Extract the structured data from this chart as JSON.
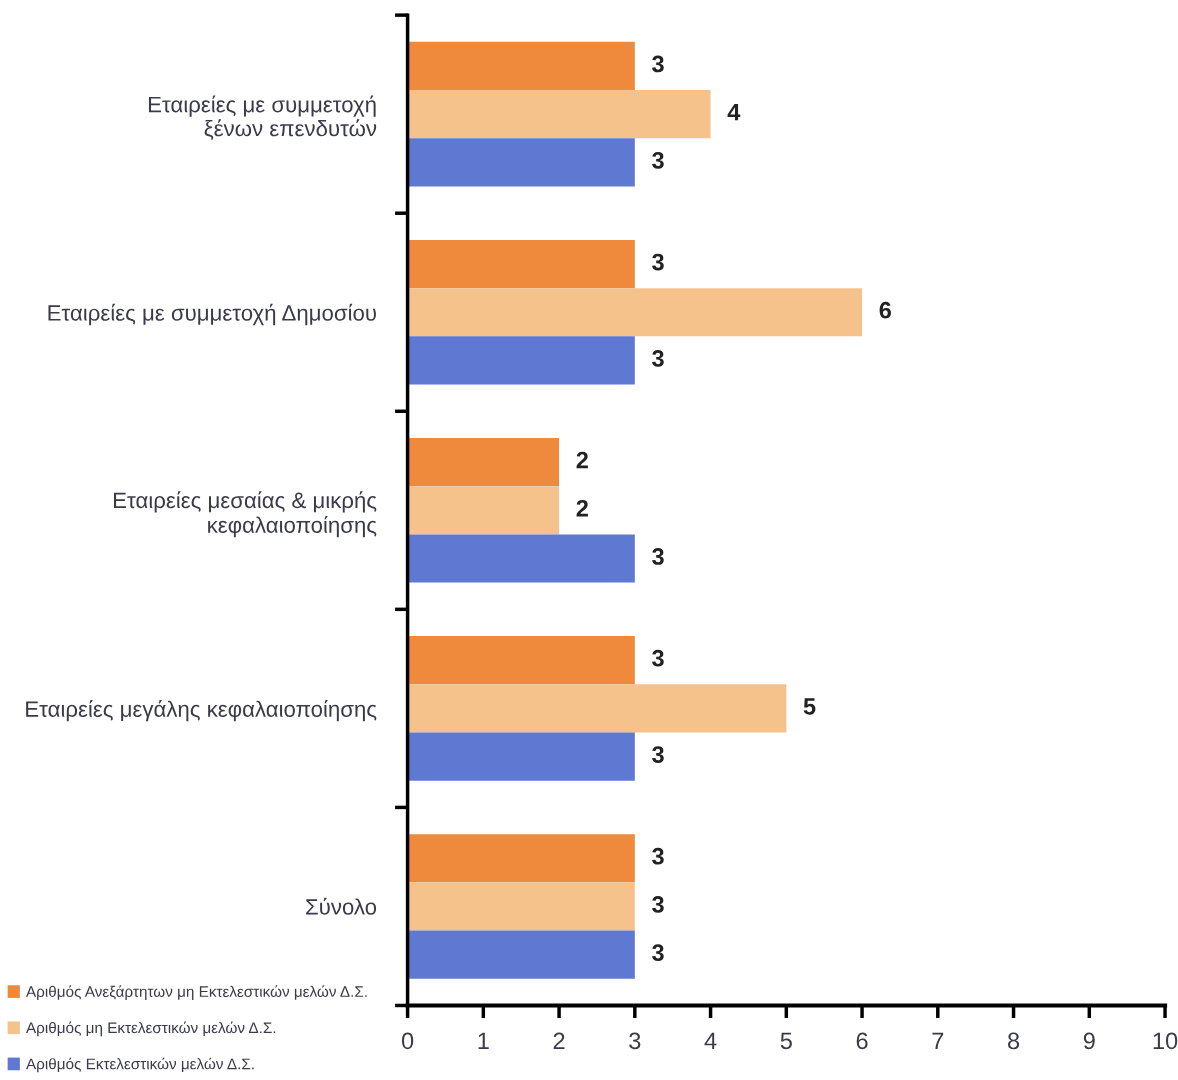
{
  "chart_data": {
    "type": "bar",
    "orientation": "horizontal",
    "categories": [
      "Εταιρείες με συμμετοχή\nξένων επενδυτών",
      "Εταιρείες με συμμετοχή Δημοσίου",
      "Εταιρείες μεσαίας & μικρής\nκεφαλαιοποίησης",
      "Εταιρείες μεγάλης κεφαλαιοποίησης",
      "Σύνολο"
    ],
    "series": [
      {
        "name": "Αριθμός Ανεξάρτητων μη Εκτελεστικών μελών Δ.Σ.",
        "color": "#ef8a3c",
        "values": [
          3,
          3,
          2,
          3,
          3
        ]
      },
      {
        "name": "Αριθμός μη Εκτελεστικών μελών Δ.Σ.",
        "color": "#f6c28c",
        "values": [
          4,
          6,
          2,
          5,
          3
        ]
      },
      {
        "name": "Αριθμός Εκτελεστικών μελών Δ.Σ.",
        "color": "#5f78d2",
        "values": [
          3,
          3,
          3,
          3,
          3
        ]
      }
    ],
    "xlim": [
      0,
      10
    ],
    "xticks": [
      0,
      1,
      2,
      3,
      4,
      5,
      6,
      7,
      8,
      9,
      10
    ],
    "data_labels": true,
    "legend": "bottom left",
    "grid": false
  }
}
